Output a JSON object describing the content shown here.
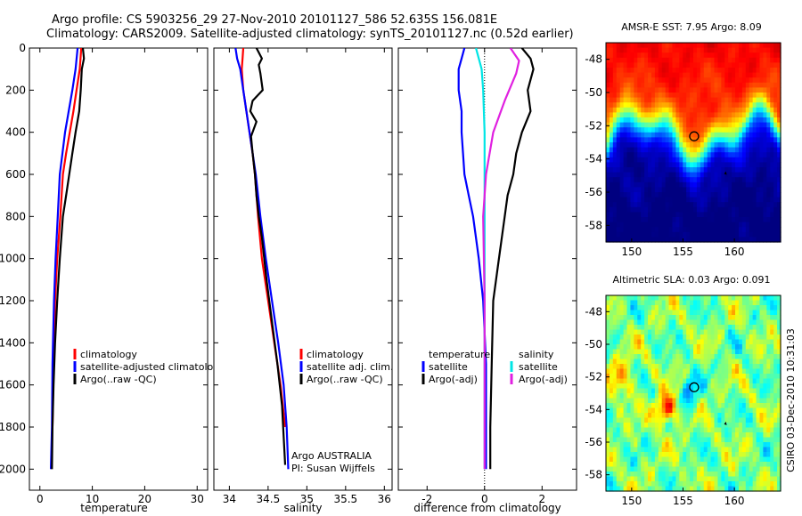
{
  "header": {
    "line1": "Argo profile: CS 5903256_29 27-Nov-2010 20101127_586 52.635S 156.081E",
    "line2": "Climatology: CARS2009. Satellite-adjusted climatology: synTS_20101127.nc (0.52d earlier)"
  },
  "credit": "CSIRO 03-Dec-2010 10:31:03",
  "colors": {
    "climatology": "#ff0000",
    "satellite": "#0000ff",
    "argo": "#000000",
    "sal_satellite": "#00e5e5",
    "sal_argo": "#e020e0"
  },
  "chart_data": [
    {
      "id": "temperature",
      "type": "line",
      "xlabel": "temperature",
      "ylabel": "",
      "xlim": [
        -2,
        32
      ],
      "ylim": [
        2100,
        0
      ],
      "xticks": [
        0,
        10,
        20,
        30
      ],
      "yticks": [
        0,
        200,
        400,
        600,
        800,
        1000,
        1200,
        1400,
        1600,
        1800,
        2000
      ],
      "legend": [
        "climatology",
        "satellite-adjusted climatology",
        "Argo(..raw -QC)"
      ],
      "series": [
        {
          "name": "climatology",
          "color": "#ff0000",
          "x": [
            7.9,
            7.6,
            7.0,
            6.4,
            5.7,
            5.0,
            4.4,
            3.9,
            3.3,
            2.9,
            2.6,
            2.4
          ],
          "y": [
            0,
            100,
            200,
            300,
            400,
            500,
            600,
            800,
            1000,
            1200,
            1500,
            1800
          ]
        },
        {
          "name": "satellite-adjusted climatology",
          "color": "#0000ff",
          "x": [
            7.2,
            6.8,
            6.2,
            5.5,
            4.8,
            4.3,
            3.8,
            3.4,
            3.0,
            2.7,
            2.4,
            2.3,
            2.1
          ],
          "y": [
            0,
            100,
            200,
            300,
            400,
            500,
            600,
            800,
            1000,
            1200,
            1500,
            1800,
            2000
          ]
        },
        {
          "name": "Argo(..raw -QC)",
          "color": "#000000",
          "x": [
            8.2,
            8.4,
            8.0,
            7.8,
            7.5,
            6.8,
            6.2,
            5.6,
            5.0,
            4.4,
            3.8,
            3.3,
            2.9,
            2.6,
            2.4,
            2.3
          ],
          "y": [
            0,
            50,
            100,
            200,
            300,
            400,
            500,
            600,
            700,
            800,
            1000,
            1200,
            1400,
            1600,
            1800,
            2000
          ]
        }
      ]
    },
    {
      "id": "salinity",
      "type": "line",
      "xlabel": "salinity",
      "ylabel": "",
      "xlim": [
        33.8,
        36.1
      ],
      "ylim": [
        2100,
        0
      ],
      "xticks": [
        34,
        34.5,
        35,
        35.5,
        36
      ],
      "legend": [
        "climatology",
        "satellite adj. clim.",
        "Argo(..raw -QC)"
      ],
      "annotation": [
        "Argo AUSTRALIA",
        "PI: Susan Wijffels"
      ],
      "series": [
        {
          "name": "climatology",
          "color": "#ff0000",
          "x": [
            34.18,
            34.17,
            34.16,
            34.18,
            34.22,
            34.26,
            34.3,
            34.33,
            34.37,
            34.42,
            34.5,
            34.58,
            34.66,
            34.72
          ],
          "y": [
            0,
            50,
            100,
            200,
            300,
            400,
            500,
            600,
            800,
            1000,
            1200,
            1400,
            1600,
            1800
          ]
        },
        {
          "name": "satellite adj. clim.",
          "color": "#0000ff",
          "x": [
            34.08,
            34.1,
            34.14,
            34.18,
            34.22,
            34.26,
            34.3,
            34.34,
            34.4,
            34.47,
            34.55,
            34.63,
            34.7,
            34.74,
            34.76
          ],
          "y": [
            0,
            50,
            100,
            200,
            300,
            400,
            500,
            600,
            800,
            1000,
            1200,
            1400,
            1600,
            1800,
            2000
          ]
        },
        {
          "name": "Argo(..raw -QC)",
          "color": "#000000",
          "x": [
            34.35,
            34.42,
            34.38,
            34.4,
            34.43,
            34.3,
            34.27,
            34.35,
            34.28,
            34.3,
            34.33,
            34.35,
            34.38,
            34.42,
            34.48,
            34.55,
            34.62,
            34.68,
            34.72
          ],
          "y": [
            0,
            50,
            80,
            120,
            200,
            250,
            300,
            350,
            420,
            500,
            600,
            700,
            800,
            900,
            1100,
            1300,
            1500,
            1700,
            1980
          ]
        }
      ]
    },
    {
      "id": "difference",
      "type": "line",
      "xlabel": "difference from climatology",
      "ylabel": "",
      "xlim": [
        -3,
        3.2
      ],
      "ylim": [
        2100,
        0
      ],
      "xticks": [
        -2,
        0,
        2
      ],
      "legend_groups": [
        {
          "title": "temperature",
          "items": [
            "satellite",
            "Argo(-adj)"
          ]
        },
        {
          "title": "salinity",
          "items": [
            "satellite",
            "Argo(-adj)"
          ]
        }
      ],
      "series": [
        {
          "name": "temperature satellite",
          "color": "#0000ff",
          "x": [
            -0.7,
            -0.8,
            -0.9,
            -0.9,
            -0.8,
            -0.8,
            -0.75,
            -0.7,
            -0.55,
            -0.4,
            -0.2,
            -0.05,
            0.05,
            0.05,
            0.05
          ],
          "y": [
            0,
            50,
            100,
            200,
            300,
            400,
            500,
            600,
            700,
            800,
            1000,
            1200,
            1500,
            1800,
            2000
          ]
        },
        {
          "name": "temperature Argo(-adj)",
          "color": "#000000",
          "x": [
            1.3,
            1.6,
            1.7,
            1.5,
            1.6,
            1.3,
            1.1,
            1.0,
            0.8,
            0.7,
            0.5,
            0.3,
            0.25,
            0.2,
            0.2
          ],
          "y": [
            0,
            50,
            100,
            200,
            300,
            400,
            500,
            600,
            700,
            800,
            1000,
            1200,
            1500,
            1800,
            2000
          ]
        },
        {
          "name": "salinity satellite",
          "color": "#00e5e5",
          "x": [
            -0.3,
            -0.2,
            -0.1,
            -0.05,
            0.0,
            0.0,
            0.0,
            0.0,
            0.0,
            0.0
          ],
          "y": [
            0,
            50,
            100,
            200,
            400,
            600,
            800,
            1200,
            1600,
            2000
          ]
        },
        {
          "name": "salinity Argo(-adj)",
          "color": "#e020e0",
          "x": [
            0.9,
            1.2,
            1.1,
            0.7,
            0.3,
            0.05,
            -0.05,
            0.0,
            0.0,
            0.0
          ],
          "y": [
            0,
            60,
            120,
            250,
            400,
            600,
            800,
            1200,
            1600,
            2000
          ]
        }
      ]
    },
    {
      "id": "sst_map",
      "type": "heatmap",
      "title": "AMSR-E SST: 7.95 Argo: 8.09",
      "xticks": [
        150,
        155,
        160
      ],
      "yticks": [
        -48,
        -50,
        -52,
        -54,
        -56,
        -58
      ],
      "xlim": [
        147.5,
        164.5
      ],
      "ylim": [
        -47,
        -59
      ],
      "float_position": {
        "lon": 156.081,
        "lat": -52.635
      }
    },
    {
      "id": "sla_map",
      "type": "heatmap",
      "title": "Altimetric SLA: 0.03 Argo: 0.091",
      "xticks": [
        150,
        155,
        160
      ],
      "yticks": [
        -48,
        -50,
        -52,
        -54,
        -56,
        -58
      ],
      "xlim": [
        147.5,
        164.5
      ],
      "ylim": [
        -47,
        -59
      ],
      "float_position": {
        "lon": 156.081,
        "lat": -52.635
      }
    }
  ]
}
